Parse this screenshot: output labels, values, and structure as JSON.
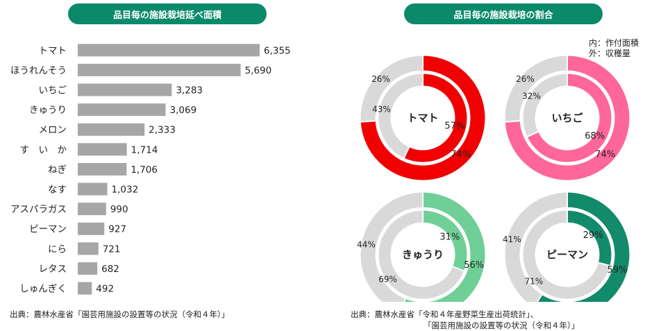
{
  "headers": {
    "left_title": "品目毎の施設栽培延べ面積",
    "right_title": "品目毎の施設栽培の割合"
  },
  "legend": {
    "inner": "内：作付面積",
    "outer": "外：収穫量"
  },
  "sources": {
    "left": "出典：農林水産省「園芸用施設の設置等の状況（令和４年）」",
    "right_line1": "出典：農林水産省「令和４年産野菜生産出荷統計」、",
    "right_line2": "「園芸用施設の設置等の状況（令和４年）」"
  },
  "colors": {
    "header_bg": "#0b8a6a",
    "bar": "#a6a6a6",
    "donut_gray": "#d9d9d9",
    "tomato": "#f00000",
    "strawberry": "#ff6699",
    "cucumber": "#6fcf97",
    "pepper": "#138a6a"
  },
  "chart_data": [
    {
      "type": "bar",
      "orientation": "horizontal",
      "title": "品目毎の施設栽培延べ面積",
      "categories": [
        "トマト",
        "ほうれんそう",
        "いちご",
        "きゅうり",
        "メロン",
        "す　い　か",
        "ねぎ",
        "なす",
        "アスパラガス",
        "ピーマン",
        "にら",
        "レタス",
        "しゅんぎく"
      ],
      "values": [
        6355,
        5690,
        3283,
        3069,
        2333,
        1714,
        1706,
        1032,
        990,
        927,
        721,
        682,
        492
      ],
      "value_labels": [
        "6,355",
        "5,690",
        "3,283",
        "3,069",
        "2,333",
        "1,714",
        "1,706",
        "1,032",
        "990",
        "927",
        "721",
        "682",
        "492"
      ],
      "xlim": [
        0,
        6355
      ],
      "grid": false,
      "axis_tick_labels_shown": false
    },
    {
      "type": "pie",
      "variant": "nested-donut",
      "title": "品目毎の施設栽培の割合",
      "rings": {
        "inner": "作付面積",
        "outer": "収穫量"
      },
      "donuts": [
        {
          "label": "トマト",
          "color_key": "tomato",
          "inner_pct": 57,
          "outer_pct": 74,
          "inner_other_label": "43%",
          "outer_other_label": "26%",
          "inner_label": "57%",
          "outer_label": "74%"
        },
        {
          "label": "いちご",
          "color_key": "strawberry",
          "inner_pct": 68,
          "outer_pct": 74,
          "inner_other_label": "32%",
          "outer_other_label": "26%",
          "inner_label": "68%",
          "outer_label": "74%"
        },
        {
          "label": "きゅうり",
          "color_key": "cucumber",
          "inner_pct": 31,
          "outer_pct": 56,
          "inner_other_label": "69%",
          "outer_other_label": "44%",
          "inner_label": "31%",
          "outer_label": "56%"
        },
        {
          "label": "ピーマン",
          "color_key": "pepper",
          "inner_pct": 29,
          "outer_pct": 59,
          "inner_other_label": "71%",
          "outer_other_label": "41%",
          "inner_label": "29%",
          "outer_label": "59%"
        }
      ]
    }
  ]
}
